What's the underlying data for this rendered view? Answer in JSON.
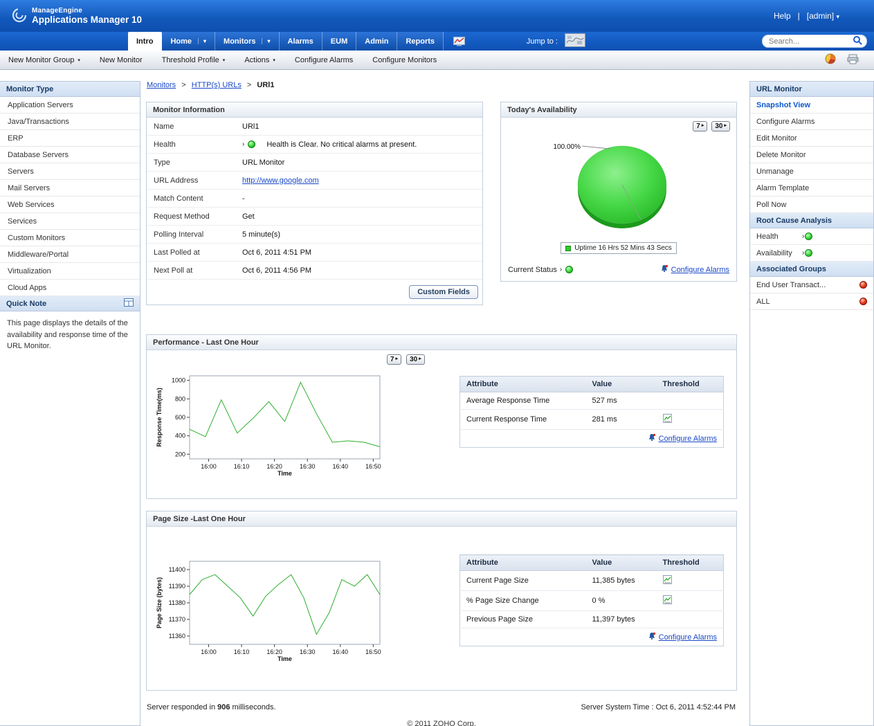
{
  "colors": {
    "header_blue": "#1a63cf",
    "link_blue": "#1a49c8",
    "section_header_bg": "#d7e3f3",
    "status_up_green": "#2ecc2e",
    "status_critical_red": "#d22000",
    "chart_line_green": "#2eae2e",
    "pie_green": "#3ddb3d"
  },
  "icons": {
    "caret_down": "▾",
    "caret_right": "▸",
    "status_chevron": "›"
  },
  "header": {
    "brand_line1": "ManageEngine",
    "brand_line2": "Applications Manager",
    "brand_version": "10",
    "help_label": "Help",
    "divider": "|",
    "user_label": "[admin]"
  },
  "nav": {
    "tabs": [
      {
        "label": "Intro"
      },
      {
        "label": "Home"
      },
      {
        "label": "Monitors"
      },
      {
        "label": "Alarms"
      },
      {
        "label": "EUM"
      },
      {
        "label": "Admin"
      },
      {
        "label": "Reports"
      }
    ],
    "jump_to_label": "Jump to :",
    "search_placeholder": "Search..."
  },
  "toolbar": {
    "new_monitor_group": "New Monitor Group",
    "new_monitor": "New Monitor",
    "threshold_profile": "Threshold Profile",
    "actions": "Actions",
    "configure_alarms": "Configure Alarms",
    "configure_monitors": "Configure Monitors"
  },
  "sidebar": {
    "title": "Monitor Type",
    "items": [
      "Application Servers",
      "Java/Transactions",
      "ERP",
      "Database Servers",
      "Servers",
      "Mail Servers",
      "Web Services",
      "Services",
      "Custom Monitors",
      "Middleware/Portal",
      "Virtualization",
      "Cloud Apps"
    ],
    "quick_note_title": "Quick Note",
    "quick_note_text": "This page displays the details of the availability and response time of the URL Monitor."
  },
  "breadcrumb": {
    "monitors": "Monitors",
    "sep": ">",
    "parent": "HTTP(s) URLs",
    "current": "URl1"
  },
  "controls": {
    "range_7": "7",
    "range_30": "30"
  },
  "monitor_info": {
    "title": "Monitor Information",
    "rows": [
      {
        "label": "Name",
        "value": "URl1"
      },
      {
        "label": "Health",
        "value": "Health is Clear. No critical alarms at present."
      },
      {
        "label": "Type",
        "value": "URL Monitor"
      },
      {
        "label": "URL Address",
        "value": "http://www.google.com"
      },
      {
        "label": "Match Content",
        "value": "-"
      },
      {
        "label": "Request Method",
        "value": "Get"
      },
      {
        "label": "Polling Interval",
        "value": "5 minute(s)"
      },
      {
        "label": "Last Polled at",
        "value": "Oct 6, 2011 4:51 PM"
      },
      {
        "label": "Next Poll at",
        "value": "Oct 6, 2011 4:56 PM"
      }
    ],
    "custom_fields_button": "Custom Fields"
  },
  "availability": {
    "current_status_label": "Current Status",
    "configure_alarms_link": "Configure Alarms"
  },
  "performance": {
    "table": {
      "headers": [
        "Attribute",
        "Value",
        "Threshold"
      ],
      "rows": [
        {
          "attribute": "Average Response Time",
          "value": "527 ms"
        },
        {
          "attribute": "Current Response Time",
          "value": "281 ms"
        }
      ],
      "configure_alarms_link": "Configure Alarms"
    }
  },
  "page_size": {
    "table": {
      "headers": [
        "Attribute",
        "Value",
        "Threshold"
      ],
      "rows": [
        {
          "attribute": "Current Page Size",
          "value": "11,385 bytes"
        },
        {
          "attribute": "% Page Size Change",
          "value": "0 %"
        },
        {
          "attribute": "Previous Page Size",
          "value": "11,397 bytes"
        }
      ],
      "configure_alarms_link": "Configure Alarms"
    }
  },
  "right_panel": {
    "title": "URL Monitor",
    "items": [
      "Snapshot View",
      "Configure Alarms",
      "Edit Monitor",
      "Delete Monitor",
      "Unmanage",
      "Alarm Template",
      "Poll Now"
    ],
    "root_cause_title": "Root Cause Analysis",
    "root_cause_items": [
      "Health",
      "Availability"
    ],
    "associated_title": "Associated Groups",
    "associated_items": [
      "End User Transact...",
      "ALL"
    ]
  },
  "footer": {
    "responded_prefix": "Server responded in",
    "responded_value": "906",
    "responded_suffix": "milliseconds.",
    "server_time": "Server System Time : Oct 6, 2011 4:52:44 PM",
    "copyright": "© 2011 ZOHO Corp."
  },
  "chart_data": [
    {
      "type": "pie",
      "title": "Today's Availability",
      "labels": [
        "Uptime"
      ],
      "values": [
        100
      ],
      "percent_label": "100.00%",
      "legend": "Uptime 16 Hrs 52 Mins 43 Secs",
      "color": "#3ddb3d",
      "legend_position": "bottom"
    },
    {
      "type": "line",
      "title": "Performance - Last One Hour",
      "xlabel": "Time",
      "ylabel": "Response Time(ms)",
      "x_ticks": [
        "16:00",
        "16:10",
        "16:20",
        "16:30",
        "16:40",
        "16:50"
      ],
      "y_ticks": [
        200,
        400,
        600,
        800,
        1000
      ],
      "ylim": [
        150,
        1050
      ],
      "values": [
        470,
        390,
        790,
        430,
        590,
        770,
        555,
        980,
        640,
        330,
        345,
        330,
        281
      ],
      "line_color": "#2eae2e",
      "grid": false
    },
    {
      "type": "line",
      "title": "Page Size -Last One Hour",
      "xlabel": "Time",
      "ylabel": "Page Size (bytes)",
      "x_ticks": [
        "16:00",
        "16:10",
        "16:20",
        "16:30",
        "16:40",
        "16:50"
      ],
      "y_ticks": [
        11360,
        11370,
        11380,
        11390,
        11400
      ],
      "ylim": [
        11355,
        11405
      ],
      "values": [
        11385,
        11394,
        11397,
        11390,
        11383,
        11372,
        11384,
        11391,
        11397,
        11383,
        11361,
        11374,
        11394,
        11390,
        11397,
        11385
      ],
      "line_color": "#2eae2e",
      "grid": false
    }
  ]
}
